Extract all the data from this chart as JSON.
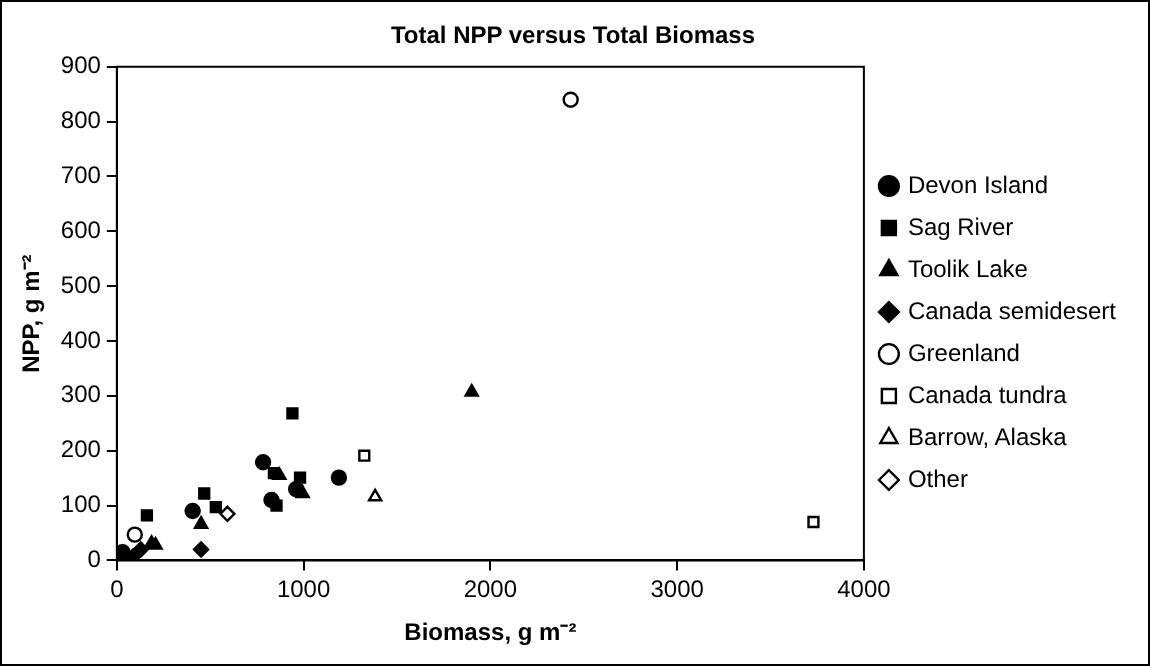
{
  "chart_data": {
    "type": "scatter",
    "title": "Total NPP versus Total Biomass",
    "xlabel": "Biomass, g m⁻²",
    "ylabel": "NPP, g m⁻²",
    "xlim": [
      0,
      4000
    ],
    "xticks": [
      0,
      1000,
      2000,
      3000,
      4000
    ],
    "ylim": [
      0,
      900
    ],
    "yticks": [
      0,
      100,
      200,
      300,
      400,
      500,
      600,
      700,
      800,
      900
    ],
    "grid": false,
    "legend": "right",
    "series": [
      {
        "name": "Devon Island",
        "color": "#000000",
        "marker": "circle",
        "x": [
          406,
          783,
          828,
          1189,
          960,
          30
        ],
        "values": [
          90,
          179,
          110,
          151,
          130,
          15
        ]
      },
      {
        "name": "Sag River",
        "color": "#000000",
        "marker": "square",
        "x": [
          161,
          468,
          530,
          940,
          841,
          981,
          855
        ],
        "values": [
          82,
          122,
          97,
          268,
          159,
          151,
          100
        ]
      },
      {
        "name": "Toolik Lake",
        "color": "#000000",
        "marker": "triangle",
        "x": [
          1900,
          451,
          870,
          995,
          186,
          207
        ],
        "values": [
          307,
          66,
          155,
          122,
          31,
          28
        ]
      },
      {
        "name": "Canada semidesert",
        "color": "#000000",
        "marker": "diamond",
        "x": [
          451,
          87,
          128
        ],
        "values": [
          20,
          7,
          20
        ]
      },
      {
        "name": "Greenland",
        "color": "#000000",
        "marker": "circle",
        "x": [
          2430,
          96
        ],
        "values": [
          840,
          47
        ]
      },
      {
        "name": "Canada tundra",
        "color": "#000000",
        "marker": "square",
        "x": [
          1325,
          3730
        ],
        "values": [
          191,
          70
        ]
      },
      {
        "name": "Barrow, Alaska",
        "color": "#000000",
        "marker": "triangle",
        "x": [
          1383
        ],
        "values": [
          116
        ]
      },
      {
        "name": "Other",
        "color": "#000000",
        "marker": "diamond",
        "x": [
          592
        ],
        "values": [
          85
        ]
      }
    ]
  }
}
